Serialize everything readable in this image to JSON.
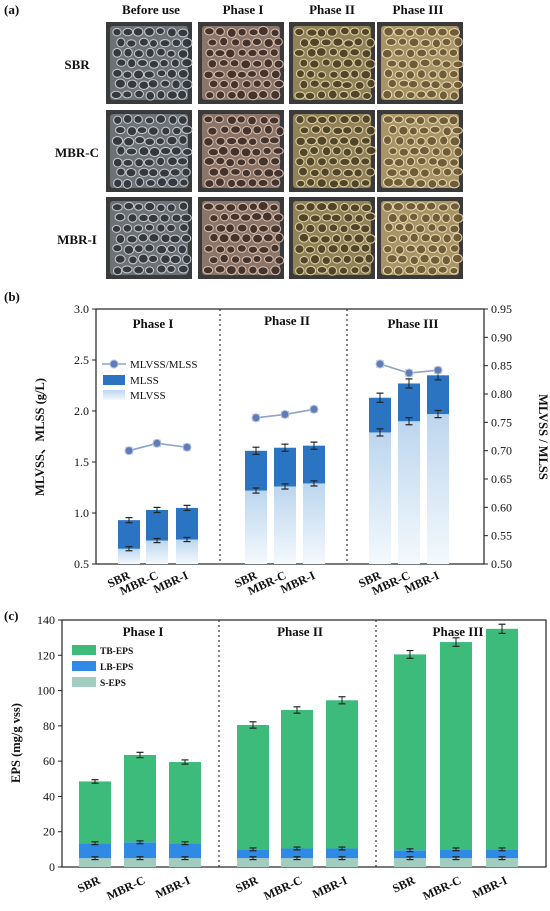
{
  "panel_a": {
    "label": "(a)",
    "columns": [
      "Before use",
      "Phase I",
      "Phase II",
      "Phase III"
    ],
    "rows": [
      "SBR",
      "MBR-C",
      "MBR-I"
    ]
  },
  "chart_data": [
    {
      "panel": "(b)",
      "type": "bar",
      "stacked": false,
      "overlay_line": true,
      "phases": [
        "Phase I",
        "Phase II",
        "Phase III"
      ],
      "categories": [
        "SBR",
        "MBR-C",
        "MBR-I"
      ],
      "ylabel": "MLVSS、MLSS (g/L)",
      "y2label": "MLVSS / MLSS",
      "ylim": [
        0.5,
        3.0
      ],
      "yticks": [
        "3.0",
        "2.5",
        "2.0",
        "1.5",
        "1.0",
        "0.5"
      ],
      "y2lim": [
        0.5,
        0.95
      ],
      "y2ticks": [
        "0.95",
        "0.90",
        "0.85",
        "0.80",
        "0.75",
        "0.70",
        "0.65",
        "0.60",
        "0.55",
        "0.50"
      ],
      "legend": [
        "MLVSS/MLSS",
        "MLSS",
        "MLVSS"
      ],
      "legend_placement": "top-left",
      "colors": {
        "mlss": "#2a74c2",
        "mlvss_top": "#bcd6ee",
        "mlvss_bottom": "#f4f9fd",
        "ratio_line": "#8fa3c7",
        "ratio_marker": "#5f7cb6"
      },
      "series": [
        {
          "name": "MLSS",
          "values": [
            [
              0.93,
              1.03,
              1.05
            ],
            [
              1.61,
              1.64,
              1.66
            ],
            [
              2.13,
              2.27,
              2.35
            ]
          ],
          "errors": [
            [
              0.025,
              0.025,
              0.025
            ],
            [
              0.035,
              0.035,
              0.035
            ],
            [
              0.045,
              0.045,
              0.045
            ]
          ]
        },
        {
          "name": "MLVSS",
          "values": [
            [
              0.65,
              0.73,
              0.74
            ],
            [
              1.22,
              1.26,
              1.29
            ],
            [
              1.79,
              1.9,
              1.97
            ]
          ],
          "errors": [
            [
              0.02,
              0.02,
              0.02
            ],
            [
              0.025,
              0.025,
              0.025
            ],
            [
              0.035,
              0.035,
              0.035
            ]
          ]
        },
        {
          "name": "MLVSS/MLSS",
          "axis": "right",
          "values": [
            [
              0.7,
              0.713,
              0.706
            ],
            [
              0.758,
              0.764,
              0.773
            ],
            [
              0.853,
              0.837,
              0.842
            ]
          ],
          "errors": [
            [
              0.005,
              0.005,
              0.005
            ],
            [
              0.005,
              0.005,
              0.005
            ],
            [
              0.005,
              0.005,
              0.005
            ]
          ]
        }
      ]
    },
    {
      "panel": "(c)",
      "type": "bar",
      "stacked": true,
      "phases": [
        "Phase I",
        "Phase II",
        "Phase III"
      ],
      "categories": [
        "SBR",
        "MBR-C",
        "MBR-I"
      ],
      "ylabel": "EPS (mg/g vss)",
      "ylim": [
        0,
        140
      ],
      "yticks": [
        "140",
        "120",
        "100",
        "80",
        "60",
        "40",
        "20",
        "0"
      ],
      "legend": [
        "TB-EPS",
        "LB-EPS",
        "S-EPS"
      ],
      "legend_placement": "top-left",
      "colors": {
        "TB-EPS": "#3dbb7b",
        "LB-EPS": "#2f8ae6",
        "S-EPS": "#a2ccbd"
      },
      "series": [
        {
          "name": "S-EPS",
          "values": [
            [
              5,
              5,
              5
            ],
            [
              5,
              5,
              5
            ],
            [
              5,
              5,
              5
            ]
          ]
        },
        {
          "name": "LB-EPS",
          "values": [
            [
              8.5,
              9,
              8.5
            ],
            [
              5,
              5.5,
              5.5
            ],
            [
              4.5,
              5,
              5
            ]
          ]
        },
        {
          "name": "TB-EPS",
          "values": [
            [
              35,
              49.5,
              46
            ],
            [
              70.5,
              78.5,
              84
            ],
            [
              111,
              117.5,
              125
            ]
          ]
        }
      ],
      "totals": [
        [
          48.5,
          63.5,
          59.5
        ],
        [
          80.5,
          89,
          94.5
        ],
        [
          120.5,
          127.5,
          135
        ]
      ],
      "total_errors": [
        1,
        1.5,
        1.2,
        1.8,
        1.8,
        2,
        2.2,
        2.4,
        2.6
      ],
      "inner_errors": [
        [
          5,
          13.5,
          1
        ],
        [
          5,
          14,
          1
        ],
        [
          5,
          13.5,
          1
        ]
      ]
    }
  ]
}
